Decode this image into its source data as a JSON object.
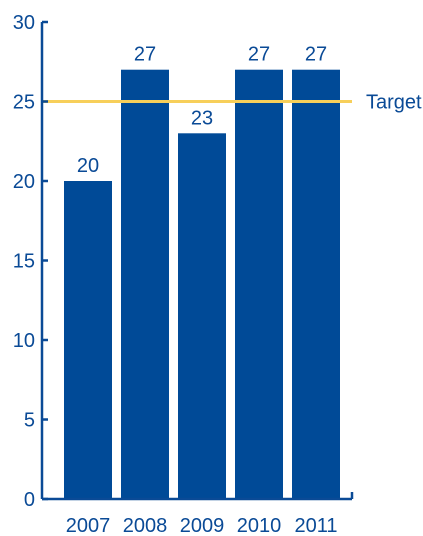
{
  "chart_data": {
    "type": "bar",
    "categories": [
      "2007",
      "2008",
      "2009",
      "2010",
      "2011"
    ],
    "values": [
      20,
      27,
      23,
      27,
      27
    ],
    "data_labels": [
      "20",
      "27",
      "23",
      "27",
      "27"
    ],
    "ylim": [
      0,
      30
    ],
    "yticks": [
      0,
      5,
      10,
      15,
      20,
      25,
      30
    ],
    "ytick_labels": [
      "0",
      "5",
      "10",
      "15",
      "20",
      "25",
      "30"
    ],
    "target": {
      "value": 25,
      "label": "Target"
    },
    "grid": false,
    "legend": "none",
    "colors": {
      "bar": "#004a97",
      "axis": "#0a4a96",
      "text": "#0a4a96",
      "target_line": "#f7cf5a"
    }
  }
}
